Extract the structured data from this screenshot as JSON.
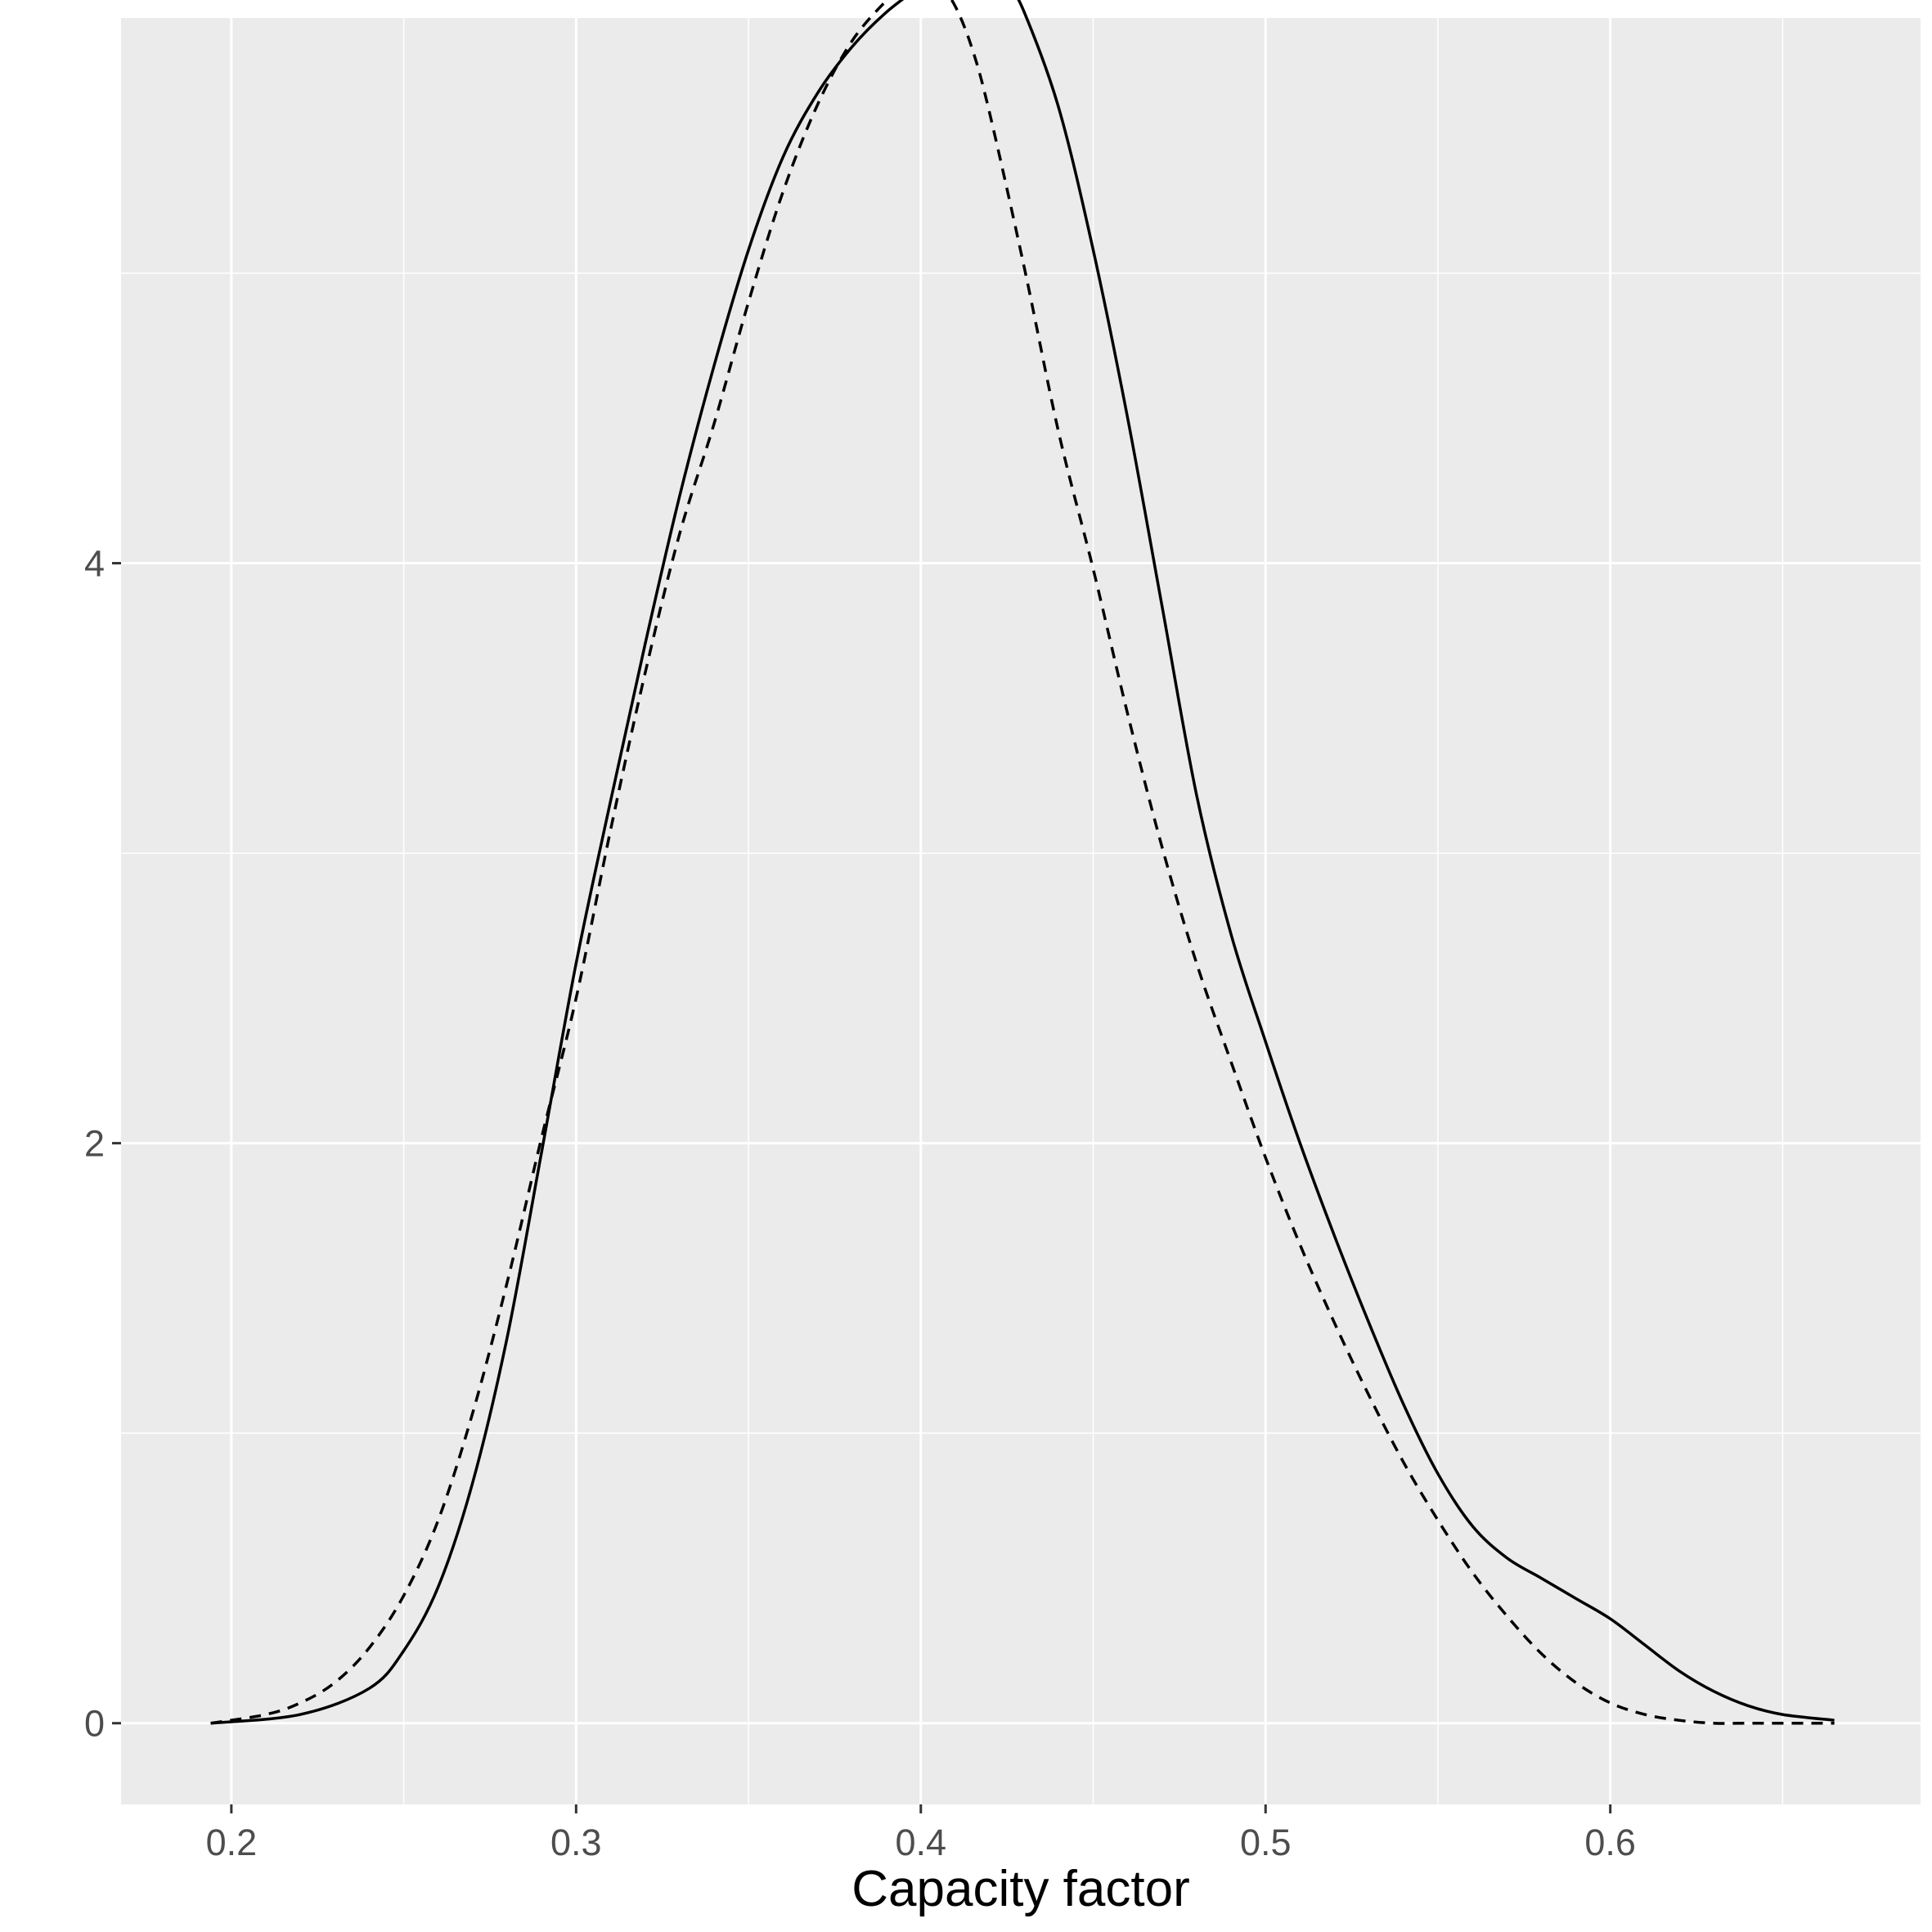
{
  "chart_data": {
    "type": "line",
    "title": "",
    "xlabel": "Capacity factor",
    "ylabel": "",
    "xlim": [
      0.168,
      0.69
    ],
    "ylim": [
      -0.28,
      5.88
    ],
    "x_ticks": [
      0.2,
      0.3,
      0.4,
      0.5,
      0.6
    ],
    "x_tick_labels": [
      "0.2",
      "0.3",
      "0.4",
      "0.5",
      "0.6"
    ],
    "x_minor_ticks": [
      0.25,
      0.35,
      0.45,
      0.55,
      0.65
    ],
    "y_ticks": [
      0,
      2,
      4
    ],
    "y_tick_labels": [
      "0",
      "2",
      "4"
    ],
    "y_minor_ticks": [
      1,
      3,
      5
    ],
    "grid": true,
    "legend": "none",
    "colors": {
      "panel_background": "#ebebeb",
      "grid": "#ffffff",
      "line": "#000000",
      "tick_label": "#4d4d4d"
    },
    "series": [
      {
        "line_style": "solid",
        "x": [
          0.194,
          0.22,
          0.24,
          0.25,
          0.26,
          0.27,
          0.28,
          0.29,
          0.3,
          0.31,
          0.32,
          0.33,
          0.34,
          0.35,
          0.36,
          0.37,
          0.38,
          0.39,
          0.4,
          0.405,
          0.41,
          0.415,
          0.42,
          0.425,
          0.43,
          0.44,
          0.45,
          0.46,
          0.47,
          0.48,
          0.49,
          0.5,
          0.51,
          0.52,
          0.53,
          0.54,
          0.55,
          0.56,
          0.57,
          0.58,
          0.59,
          0.6,
          0.61,
          0.62,
          0.63,
          0.64,
          0.65,
          0.665
        ],
        "y": [
          0.0,
          0.03,
          0.12,
          0.25,
          0.47,
          0.83,
          1.33,
          1.97,
          2.62,
          3.18,
          3.72,
          4.23,
          4.68,
          5.08,
          5.4,
          5.62,
          5.78,
          5.9,
          5.99,
          6.03,
          6.07,
          6.09,
          6.07,
          6.0,
          5.9,
          5.57,
          5.08,
          4.5,
          3.85,
          3.2,
          2.72,
          2.35,
          2.0,
          1.68,
          1.38,
          1.1,
          0.86,
          0.68,
          0.57,
          0.5,
          0.43,
          0.36,
          0.27,
          0.18,
          0.11,
          0.06,
          0.03,
          0.01
        ]
      },
      {
        "line_style": "dashed",
        "x": [
          0.194,
          0.21,
          0.22,
          0.23,
          0.24,
          0.25,
          0.26,
          0.27,
          0.28,
          0.29,
          0.3,
          0.31,
          0.32,
          0.33,
          0.34,
          0.35,
          0.36,
          0.37,
          0.38,
          0.39,
          0.395,
          0.4,
          0.405,
          0.41,
          0.415,
          0.42,
          0.43,
          0.44,
          0.45,
          0.46,
          0.47,
          0.48,
          0.49,
          0.5,
          0.51,
          0.52,
          0.53,
          0.54,
          0.55,
          0.56,
          0.57,
          0.58,
          0.59,
          0.6,
          0.61,
          0.62,
          0.63,
          0.64,
          0.665
        ],
        "y": [
          0.0,
          0.03,
          0.07,
          0.14,
          0.26,
          0.44,
          0.7,
          1.07,
          1.52,
          2.02,
          2.5,
          3.08,
          3.62,
          4.1,
          4.48,
          4.9,
          5.28,
          5.58,
          5.8,
          5.94,
          5.99,
          6.02,
          6.0,
          5.92,
          5.77,
          5.55,
          5.02,
          4.45,
          3.98,
          3.48,
          3.02,
          2.62,
          2.28,
          1.95,
          1.65,
          1.38,
          1.13,
          0.9,
          0.7,
          0.52,
          0.37,
          0.24,
          0.14,
          0.07,
          0.03,
          0.01,
          0.0,
          0.0,
          0.0
        ]
      }
    ]
  }
}
